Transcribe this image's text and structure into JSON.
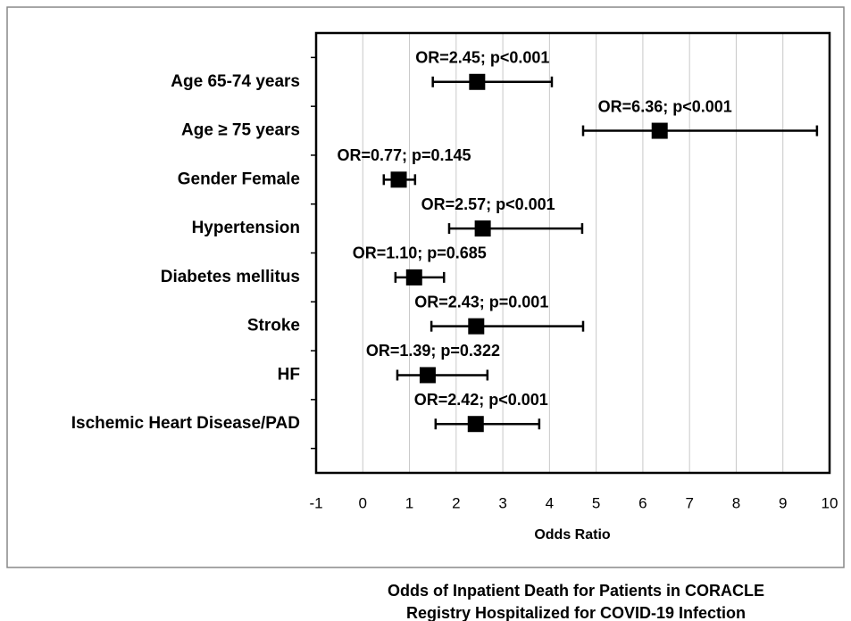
{
  "chart_data": {
    "type": "forest",
    "title": [
      "Odds of Inpatient Death for Patients in CORACLE",
      "Registry Hospitalized for COVID-19 Infection"
    ],
    "x_label": "Odds Ratio",
    "categories": [
      "Age 65-74 years",
      "Age ≥ 75 years",
      "Gender Female",
      "Hypertension",
      "Diabetes mellitus",
      "Stroke",
      "HF",
      "Ischemic Heart Disease/PAD"
    ],
    "values": [
      2.45,
      6.36,
      0.77,
      2.57,
      1.1,
      2.43,
      1.39,
      2.42
    ],
    "value_labels": [
      "OR=2.45; p<0.001",
      "OR=6.36; p<0.001",
      "OR=0.77; p=0.145",
      "OR=2.57; p<0.001",
      "OR=1.10; p=0.685",
      "OR=2.43; p=0.001",
      "OR=1.39; p=0.322",
      "OR=2.42; p<0.001"
    ],
    "ci_low": [
      1.5,
      4.72,
      0.45,
      1.85,
      0.7,
      1.47,
      0.74,
      1.56
    ],
    "ci_high": [
      4.05,
      9.73,
      1.12,
      4.7,
      1.74,
      4.72,
      2.67,
      3.78
    ],
    "color": "#000000",
    "xlim": [
      -1,
      10
    ],
    "xticks": [
      -1,
      0,
      1,
      2,
      3,
      4,
      5,
      6,
      7,
      8,
      9,
      10
    ],
    "grid": true
  }
}
